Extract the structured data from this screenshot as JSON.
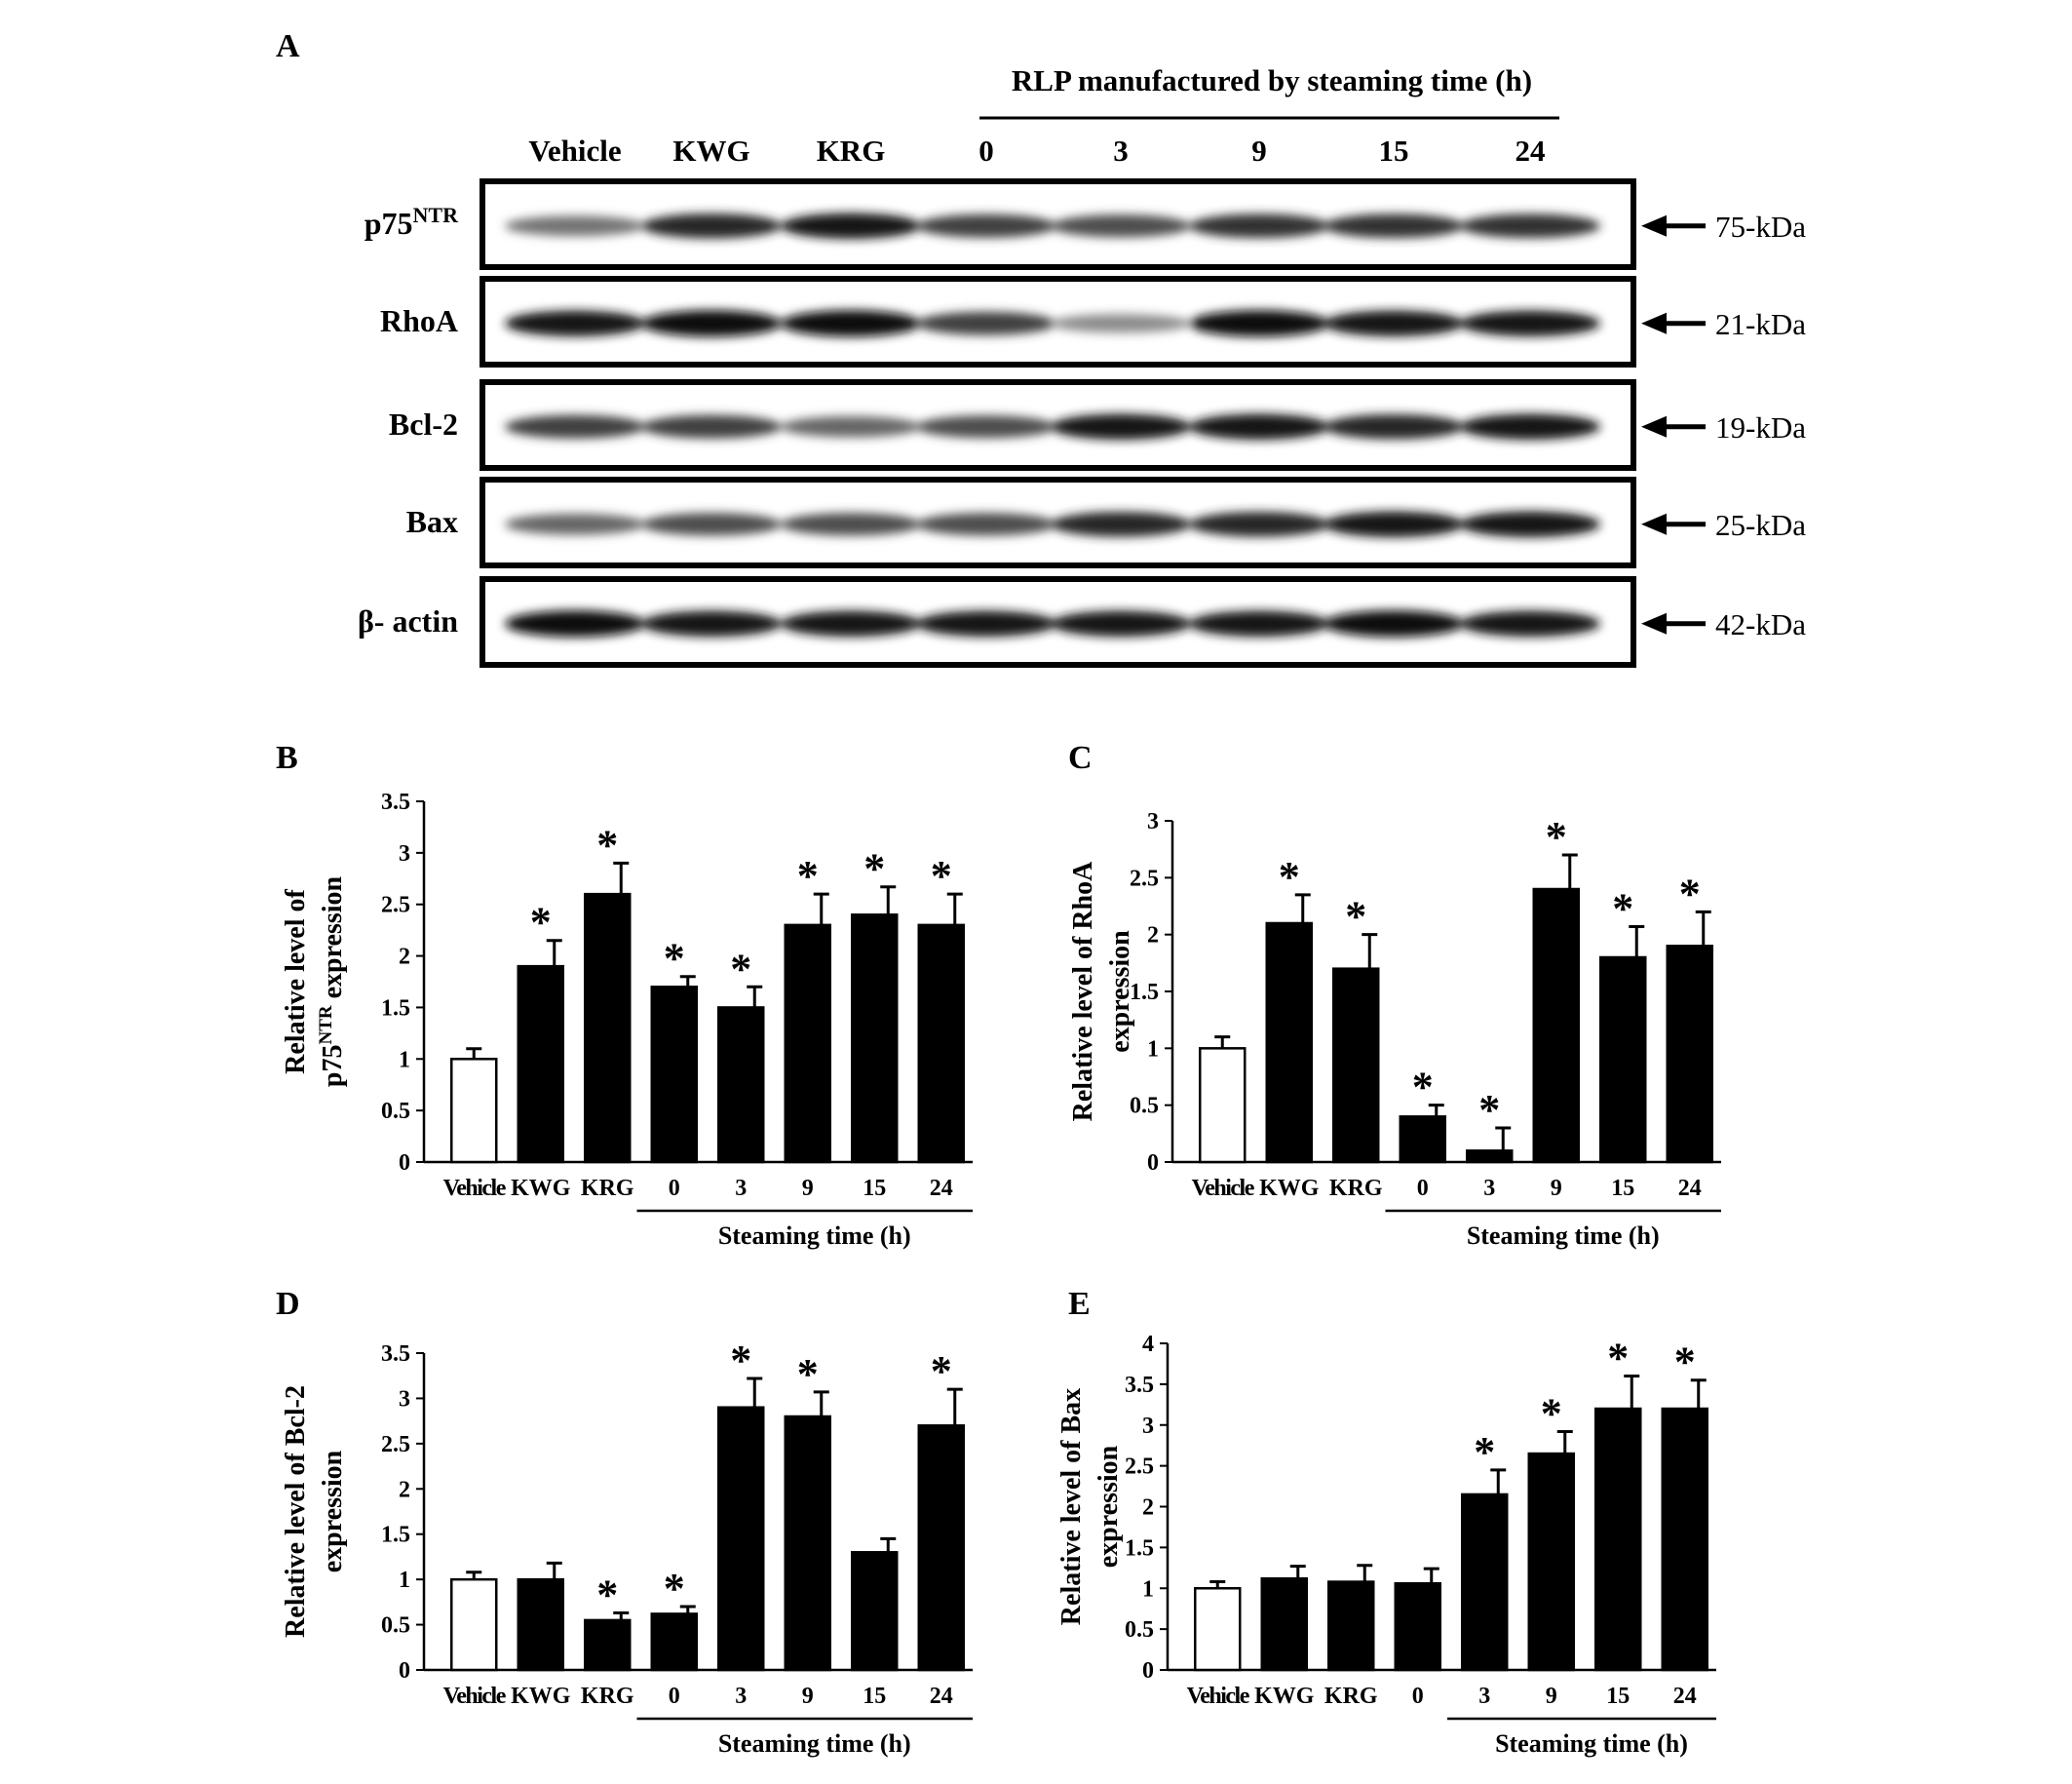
{
  "figure": {
    "panel_a": {
      "letter": "A",
      "group_title": "RLP manufactured by steaming time (h)",
      "lanes": [
        "Vehicle",
        "KWG",
        "KRG",
        "0",
        "3",
        "9",
        "15",
        "24"
      ],
      "blots": [
        {
          "label_main": "p75",
          "label_sup": "NTR",
          "marker": "75-kDa",
          "intensities": [
            0.55,
            0.85,
            0.9,
            0.75,
            0.7,
            0.8,
            0.8,
            0.8
          ]
        },
        {
          "label_main": "RhoA",
          "label_sup": "",
          "marker": "21-kDa",
          "intensities": [
            0.9,
            0.95,
            0.95,
            0.75,
            0.45,
            0.95,
            0.9,
            0.9
          ]
        },
        {
          "label_main": "Bcl-2",
          "label_sup": "",
          "marker": "19-kDa",
          "intensities": [
            0.75,
            0.75,
            0.6,
            0.7,
            0.9,
            0.9,
            0.85,
            0.9
          ]
        },
        {
          "label_main": "Bax",
          "label_sup": "",
          "marker": "25-kDa",
          "intensities": [
            0.6,
            0.7,
            0.7,
            0.7,
            0.85,
            0.85,
            0.9,
            0.9
          ]
        },
        {
          "label_main": "β- actin",
          "label_sup": "",
          "marker": "42-kDa",
          "intensities": [
            0.95,
            0.9,
            0.9,
            0.9,
            0.9,
            0.9,
            0.95,
            0.9
          ]
        }
      ]
    }
  },
  "chart_data": [
    {
      "panel": "B",
      "type": "bar",
      "ylabel_line1": "Relative level of",
      "ylabel_line2_main": "p75",
      "ylabel_line2_sup": "NTR",
      "ylabel_line2_rest": " expression",
      "categories": [
        "Vehicle",
        "KWG",
        "KRG",
        "0",
        "3",
        "9",
        "15",
        "24"
      ],
      "values": [
        1.0,
        1.9,
        2.6,
        1.7,
        1.5,
        2.3,
        2.4,
        2.3
      ],
      "errors": [
        0.1,
        0.25,
        0.3,
        0.1,
        0.2,
        0.3,
        0.27,
        0.3
      ],
      "significant": [
        false,
        true,
        true,
        true,
        true,
        true,
        true,
        true
      ],
      "ylim": [
        0,
        3.5
      ],
      "yticks": [
        "0",
        "0.5",
        "1",
        "1.5",
        "2",
        "2.5",
        "3",
        "3.5"
      ],
      "group_label": "Steaming time (h)",
      "group_start_index": 3
    },
    {
      "panel": "C",
      "type": "bar",
      "ylabel_line1": "Relative level of RhoA",
      "ylabel_line2_main": "expression",
      "ylabel_line2_sup": "",
      "ylabel_line2_rest": "",
      "categories": [
        "Vehicle",
        "KWG",
        "KRG",
        "0",
        "3",
        "9",
        "15",
        "24"
      ],
      "values": [
        1.0,
        2.1,
        1.7,
        0.4,
        0.1,
        2.4,
        1.8,
        1.9
      ],
      "errors": [
        0.1,
        0.25,
        0.3,
        0.1,
        0.2,
        0.3,
        0.27,
        0.3
      ],
      "significant": [
        false,
        true,
        true,
        true,
        true,
        true,
        true,
        true
      ],
      "ylim": [
        0,
        3
      ],
      "yticks": [
        "0",
        "0.5",
        "1",
        "1.5",
        "2",
        "2.5",
        "3"
      ],
      "group_label": "Steaming time (h)",
      "group_start_index": 3
    },
    {
      "panel": "D",
      "type": "bar",
      "ylabel_line1": "Relative level of Bcl-2",
      "ylabel_line2_main": "expression",
      "ylabel_line2_sup": "",
      "ylabel_line2_rest": "",
      "categories": [
        "Vehicle",
        "KWG",
        "KRG",
        "0",
        "3",
        "9",
        "15",
        "24"
      ],
      "values": [
        1.0,
        1.0,
        0.55,
        0.62,
        2.9,
        2.8,
        1.3,
        2.7
      ],
      "errors": [
        0.08,
        0.18,
        0.08,
        0.08,
        0.32,
        0.27,
        0.15,
        0.4
      ],
      "significant": [
        false,
        false,
        true,
        true,
        true,
        true,
        false,
        true
      ],
      "ylim": [
        0,
        3.5
      ],
      "yticks": [
        "0",
        "0.5",
        "1",
        "1.5",
        "2",
        "2.5",
        "3",
        "3.5"
      ],
      "group_label": "Steaming time (h)",
      "group_start_index": 3
    },
    {
      "panel": "E",
      "type": "bar",
      "ylabel_line1": "Relative level of Bax",
      "ylabel_line2_main": "expression",
      "ylabel_line2_sup": "",
      "ylabel_line2_rest": "",
      "categories": [
        "Vehicle",
        "KWG",
        "KRG",
        "0",
        "3",
        "9",
        "15",
        "24"
      ],
      "values": [
        1.0,
        1.12,
        1.08,
        1.06,
        2.15,
        2.65,
        3.2,
        3.2
      ],
      "errors": [
        0.08,
        0.15,
        0.2,
        0.18,
        0.3,
        0.27,
        0.4,
        0.35
      ],
      "significant": [
        false,
        false,
        false,
        false,
        true,
        true,
        true,
        true
      ],
      "ylim": [
        0,
        4
      ],
      "yticks": [
        "0",
        "0.5",
        "1",
        "1.5",
        "2",
        "2.5",
        "3",
        "3.5",
        "4"
      ],
      "group_label": "Steaming time (h)",
      "group_start_index": 4
    }
  ]
}
